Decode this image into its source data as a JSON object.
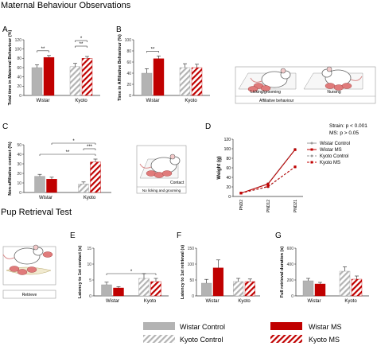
{
  "figure": {
    "section_titles": {
      "maternal": "Maternal Behaviour Observations",
      "retrieval": "Pup Retrieval Test"
    },
    "panel_letters": [
      "A",
      "B",
      "C",
      "D",
      "E",
      "F",
      "G"
    ],
    "illustrations": {
      "affiliative_left": "Licking/grooming",
      "affiliative_right": "Nursing",
      "affiliative_caption": "Affiliative behaviour",
      "nonaffiliative_label": "Contact",
      "nonaffiliative_caption": "No licking and grooming",
      "retrieval_caption": "Retrieve"
    },
    "legend": {
      "items": [
        {
          "label": "Wistar Control",
          "style": "solid",
          "color": "#b3b3b3"
        },
        {
          "label": "Wistar MS",
          "style": "solid",
          "color": "#c00000"
        },
        {
          "label": "Kyoto Control",
          "style": "hatched",
          "color": "#b3b3b3"
        },
        {
          "label": "Kyoto MS",
          "style": "hatched",
          "color": "#c00000"
        }
      ]
    },
    "colors": {
      "control": "#b3b3b3",
      "ms": "#c00000",
      "control_line": "#999999",
      "ms_line": "#c00000"
    }
  },
  "chart_data": [
    {
      "id": "A",
      "type": "bar",
      "ylabel": "Total time in Maternal Behaviour (%)",
      "ylim": [
        0,
        120
      ],
      "yticks": [
        0,
        20,
        40,
        60,
        80,
        100,
        120
      ],
      "categories": [
        "Wistar",
        "Kyoto"
      ],
      "series": [
        {
          "values": [
            60,
            62
          ],
          "errors": [
            6,
            7
          ]
        },
        {
          "values": [
            82,
            80
          ],
          "errors": [
            4,
            4
          ]
        }
      ],
      "significance": [
        {
          "label": "**",
          "from": [
            0,
            0
          ],
          "to": [
            0,
            1
          ]
        },
        {
          "label": "**",
          "from": [
            1,
            0
          ],
          "to": [
            1,
            1
          ]
        },
        {
          "label": "*",
          "from": [
            1,
            0
          ],
          "to": [
            1,
            1
          ]
        }
      ]
    },
    {
      "id": "B",
      "type": "bar",
      "ylabel": "Time in Affiliative Behaviour (%)",
      "ylim": [
        0,
        100
      ],
      "yticks": [
        0,
        20,
        40,
        60,
        80,
        100
      ],
      "categories": [
        "Wistar",
        "Kyoto"
      ],
      "series": [
        {
          "values": [
            40,
            50
          ],
          "errors": [
            8,
            7
          ]
        },
        {
          "values": [
            66,
            50
          ],
          "errors": [
            5,
            6
          ]
        }
      ],
      "significance": [
        {
          "label": "**",
          "from": [
            0,
            0
          ],
          "to": [
            0,
            1
          ]
        }
      ]
    },
    {
      "id": "C",
      "type": "bar",
      "ylabel": "Non-affiliative contact (%)",
      "ylim": [
        0,
        50
      ],
      "yticks": [
        0,
        10,
        20,
        30,
        40,
        50
      ],
      "categories": [
        "Wistar",
        "Kyoto"
      ],
      "series": [
        {
          "values": [
            17,
            9
          ],
          "errors": [
            2,
            2
          ]
        },
        {
          "values": [
            14,
            32
          ],
          "errors": [
            2,
            3
          ]
        }
      ],
      "significance": [
        {
          "label": "**",
          "from": [
            0,
            0
          ],
          "to": [
            1,
            1
          ]
        },
        {
          "label": "***",
          "from": [
            1,
            0
          ],
          "to": [
            1,
            1
          ]
        },
        {
          "label": "*",
          "from": [
            0,
            1
          ],
          "to": [
            1,
            1
          ]
        }
      ]
    },
    {
      "id": "D",
      "type": "line",
      "ylabel": "Weight (g)",
      "ylim": [
        0,
        120
      ],
      "yticks": [
        0,
        20,
        40,
        60,
        80,
        100,
        120
      ],
      "x": [
        "PND2",
        "PND12",
        "PND21"
      ],
      "series": [
        {
          "name": "Wistar Control",
          "values": [
            7,
            27,
            99
          ],
          "style": "solid",
          "color": "#999999"
        },
        {
          "name": "Wistar MS",
          "values": [
            7,
            26,
            98
          ],
          "style": "solid",
          "color": "#c00000"
        },
        {
          "name": "Kyoto Control",
          "values": [
            7,
            20,
            62
          ],
          "style": "dashed",
          "color": "#999999"
        },
        {
          "name": "Kyoto MS",
          "values": [
            7,
            21,
            62
          ],
          "style": "dashed",
          "color": "#c00000"
        }
      ],
      "stats": [
        "Strain: p < 0.001",
        "MS: p > 0.05"
      ]
    },
    {
      "id": "E",
      "type": "bar",
      "ylabel": "Latency to 1st contact (s)",
      "ylim": [
        0,
        15
      ],
      "yticks": [
        0,
        5,
        10,
        15
      ],
      "categories": [
        "Wistar",
        "Kyoto"
      ],
      "series": [
        {
          "values": [
            3.5,
            5.5
          ],
          "errors": [
            0.8,
            1.5
          ]
        },
        {
          "values": [
            2.5,
            4.5
          ],
          "errors": [
            0.4,
            1.0
          ]
        }
      ],
      "significance": [
        {
          "label": "*",
          "from": [
            0,
            0
          ],
          "to": [
            1,
            1
          ]
        }
      ]
    },
    {
      "id": "F",
      "type": "bar",
      "ylabel": "Latency to 1st retrieval (s)",
      "ylim": [
        0,
        150
      ],
      "yticks": [
        0,
        50,
        100,
        150
      ],
      "categories": [
        "Wistar",
        "Kyoto"
      ],
      "series": [
        {
          "values": [
            40,
            45
          ],
          "errors": [
            12,
            10
          ]
        },
        {
          "values": [
            88,
            45
          ],
          "errors": [
            25,
            8
          ]
        }
      ],
      "significance": []
    },
    {
      "id": "G",
      "type": "bar",
      "ylabel": "Full retrieval duration (s)",
      "ylim": [
        0,
        600
      ],
      "yticks": [
        0,
        200,
        400,
        600
      ],
      "categories": [
        "Wistar",
        "Kyoto"
      ],
      "series": [
        {
          "values": [
            190,
            310
          ],
          "errors": [
            30,
            55
          ]
        },
        {
          "values": [
            150,
            210
          ],
          "errors": [
            20,
            40
          ]
        }
      ],
      "significance": []
    }
  ]
}
